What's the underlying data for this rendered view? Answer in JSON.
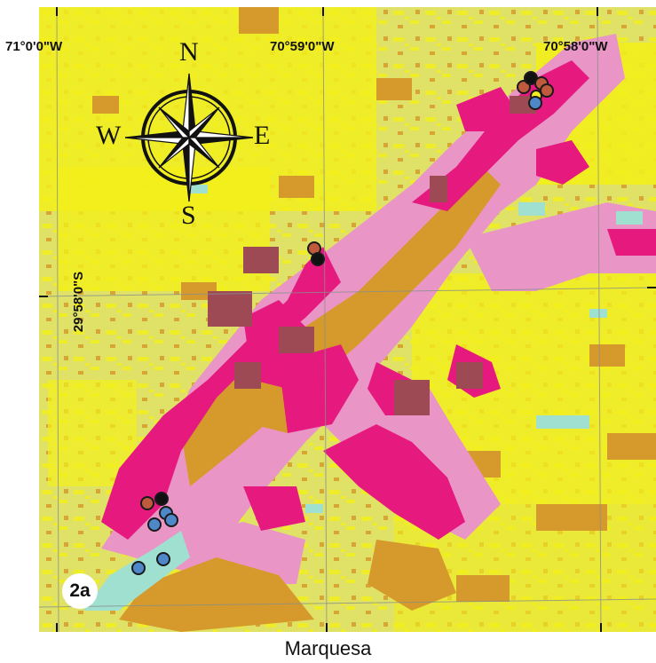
{
  "map": {
    "panel_label": "2a",
    "caption": "Marquesa",
    "longitude_labels": [
      "71°0'0\"W",
      "70°59'0\"W",
      "70°58'0\"W"
    ],
    "latitude_label": "29°58'0\"S",
    "compass": {
      "north": "N",
      "south": "S",
      "east": "E",
      "west": "W"
    },
    "colors": {
      "background": "#dfe266",
      "bright_yellow": "#f2ef1c",
      "ochre": "#d59a2b",
      "pink_light": "#e996c7",
      "magenta": "#e6197e",
      "brown_dark": "#9d4a55",
      "cyan": "#9fe0d0",
      "marker_black": "#111111",
      "marker_red": "#c05a3c",
      "marker_blue": "#4f88c9"
    },
    "markers": [
      {
        "type": "red"
      },
      {
        "type": "black"
      },
      {
        "type": "red"
      },
      {
        "type": "red"
      },
      {
        "type": "blue"
      }
    ]
  }
}
